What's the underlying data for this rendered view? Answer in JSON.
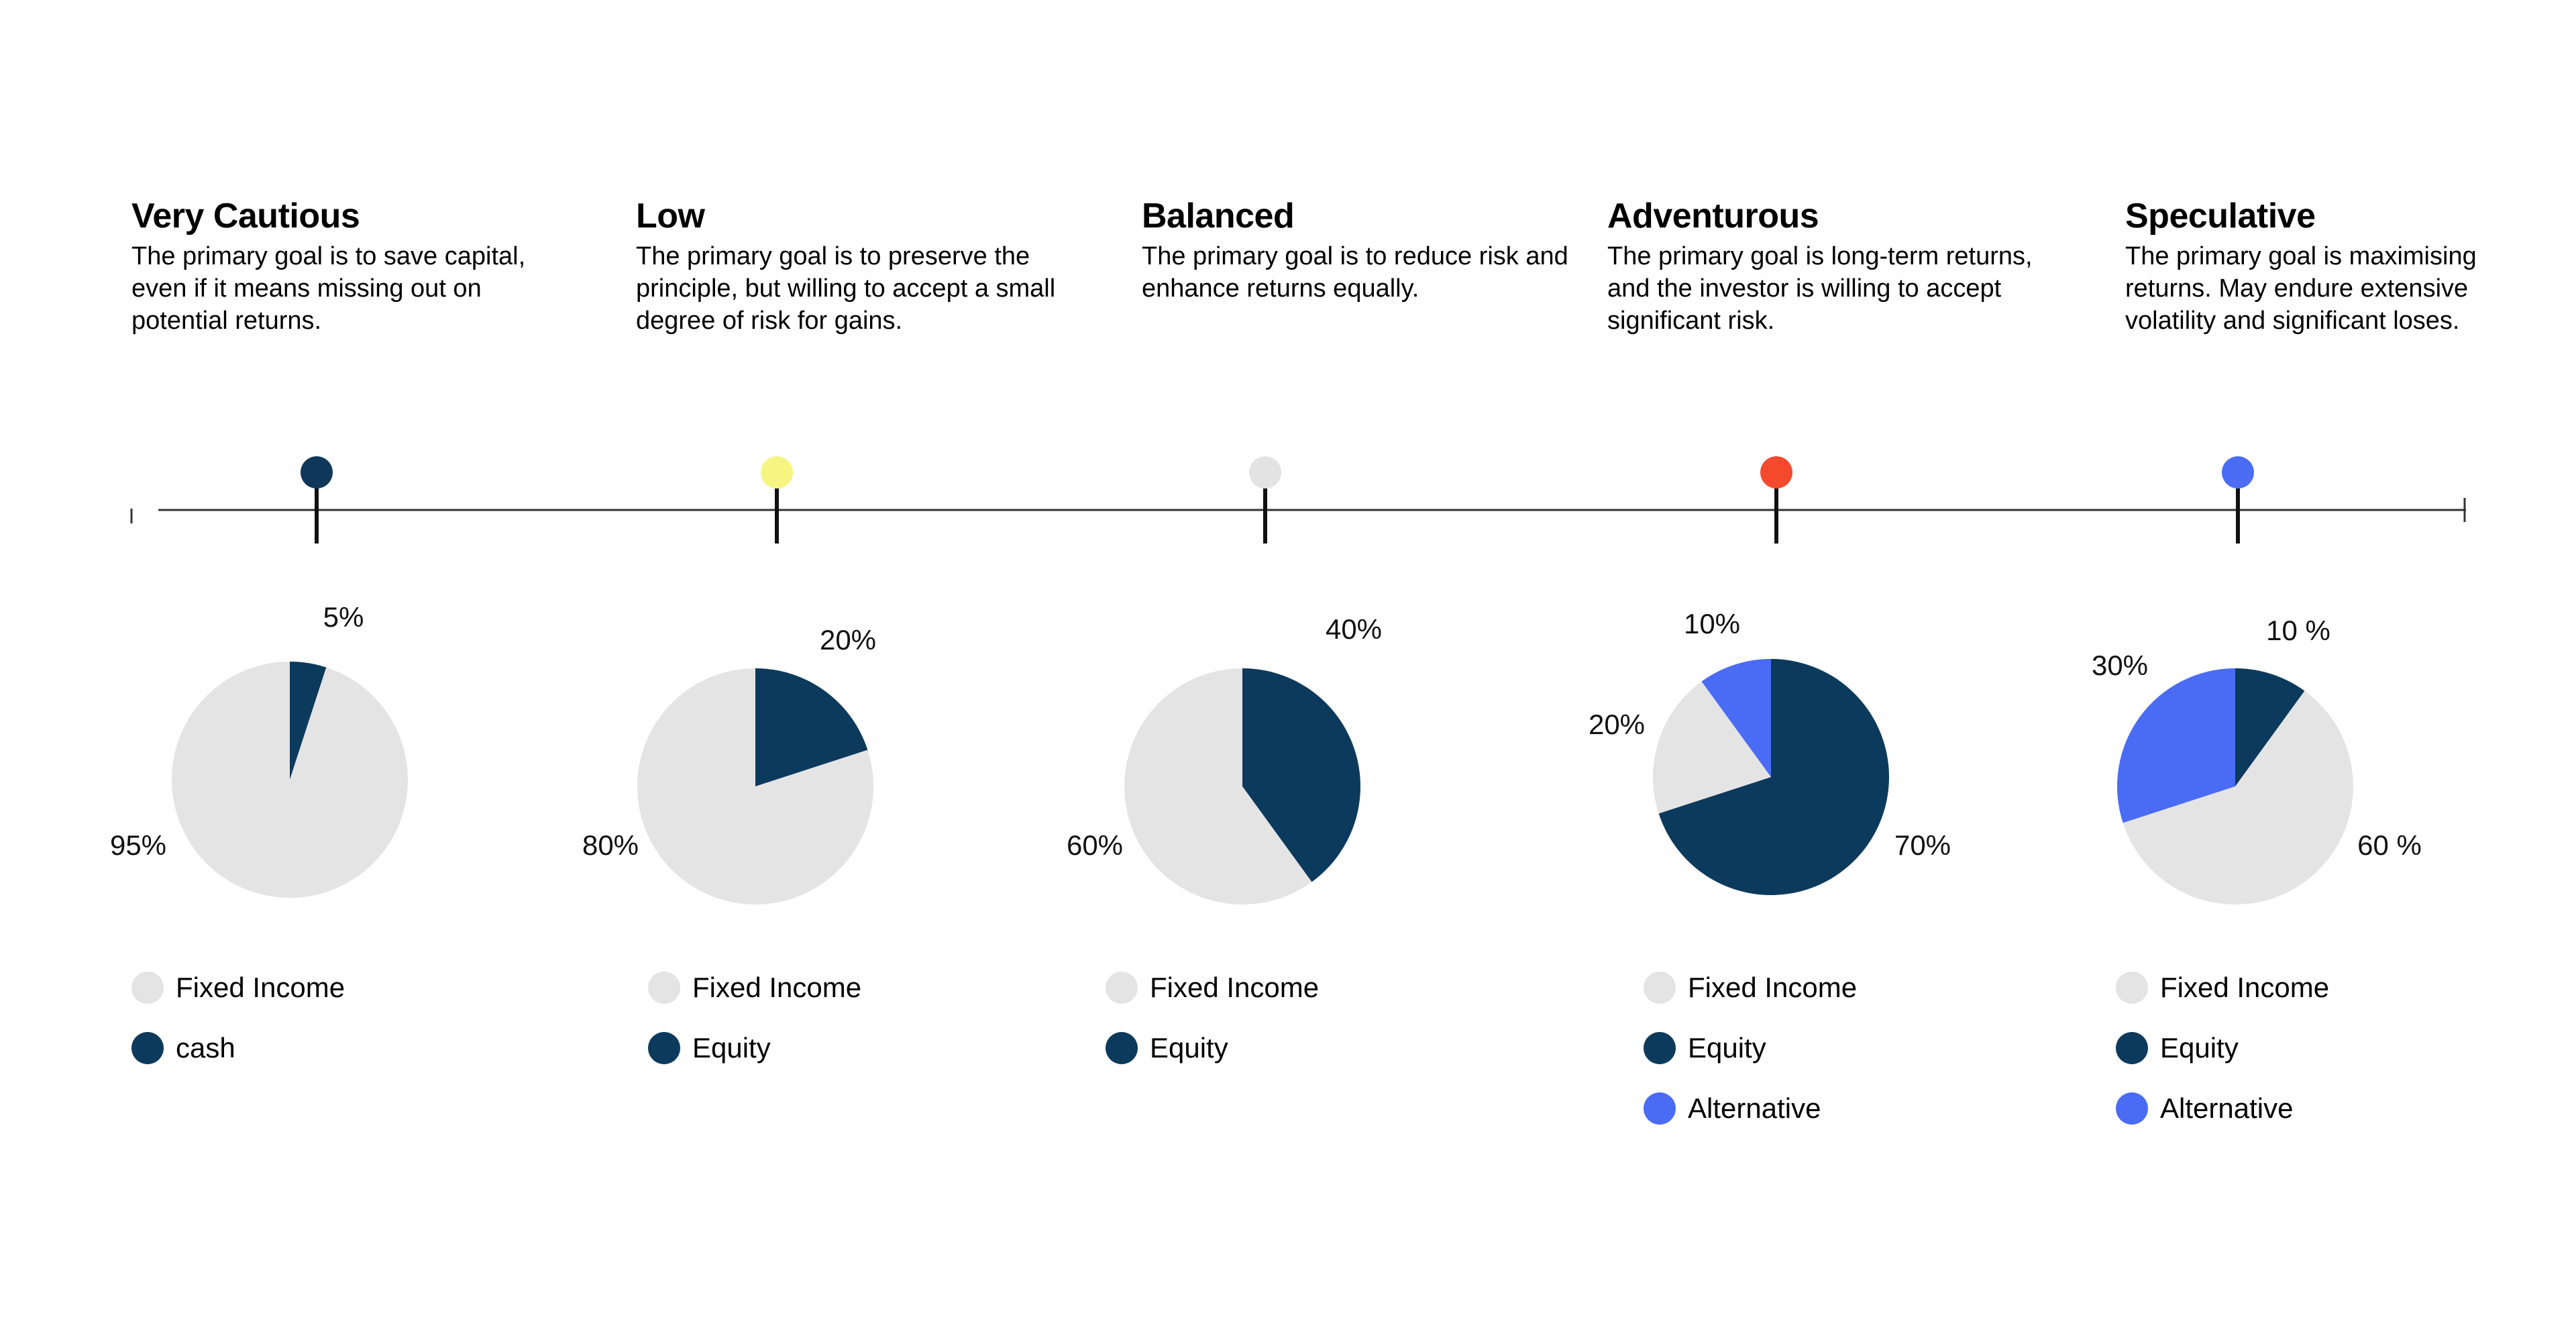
{
  "profiles": [
    {
      "title": "Very Cautious",
      "description": "The primary goal is to save capital, even if it means missing out on potential returns.",
      "marker_color": "#0f3759"
    },
    {
      "title": "Low",
      "description": "The primary goal is to preserve the principle, but willing to accept a small degree of risk for gains.",
      "marker_color": "#f6f582"
    },
    {
      "title": "Balanced",
      "description": "The primary goal is to reduce risk and enhance returns equally.",
      "marker_color": "#e4e3e4"
    },
    {
      "title": "Adventurous",
      "description": "The primary goal is long-term returns, and the investor is willing to accept significant risk.",
      "marker_color": "#f5492e"
    },
    {
      "title": "Speculative",
      "description": "The primary goal is maximising returns. May endure extensive volatility and significant loses.",
      "marker_color": "#4b6df6"
    }
  ],
  "colors": {
    "fixed_income": "#e5e4e5",
    "equity": "#0c3a5c",
    "alternative": "#4a6cf4",
    "axis": "#333333"
  },
  "chart_data": [
    {
      "type": "pie",
      "profile": "Very Cautious",
      "slices": [
        {
          "name": "cash",
          "value": 5,
          "label": "5%",
          "color": "#0c3a5c"
        },
        {
          "name": "Fixed Income",
          "value": 95,
          "label": "95%",
          "color": "#e5e4e5"
        }
      ],
      "legend": [
        "Fixed Income",
        "cash"
      ]
    },
    {
      "type": "pie",
      "profile": "Low",
      "slices": [
        {
          "name": "Equity",
          "value": 20,
          "label": "20%",
          "color": "#0c3a5c"
        },
        {
          "name": "Fixed Income",
          "value": 80,
          "label": "80%",
          "color": "#e5e4e5"
        }
      ],
      "legend": [
        "Fixed Income",
        "Equity"
      ]
    },
    {
      "type": "pie",
      "profile": "Balanced",
      "slices": [
        {
          "name": "Equity",
          "value": 40,
          "label": "40%",
          "color": "#0c3a5c"
        },
        {
          "name": "Fixed Income",
          "value": 60,
          "label": "60%",
          "color": "#e5e4e5"
        }
      ],
      "legend": [
        "Fixed Income",
        "Equity"
      ]
    },
    {
      "type": "pie",
      "profile": "Adventurous",
      "slices": [
        {
          "name": "Equity",
          "value": 70,
          "label": "70%",
          "color": "#0c3a5c"
        },
        {
          "name": "Fixed Income",
          "value": 20,
          "label": "20%",
          "color": "#e5e4e5"
        },
        {
          "name": "Alternative",
          "value": 10,
          "label": "10%",
          "color": "#4a6cf4"
        }
      ],
      "legend": [
        "Fixed Income",
        "Equity",
        "Alternative"
      ]
    },
    {
      "type": "pie",
      "profile": "Speculative",
      "slices": [
        {
          "name": "Equity",
          "value": 10,
          "label": "10 %",
          "color": "#0c3a5c"
        },
        {
          "name": "Fixed Income",
          "value": 60,
          "label": "60 %",
          "color": "#e5e4e5"
        },
        {
          "name": "Alternative",
          "value": 30,
          "label": "30%",
          "color": "#4a6cf4"
        }
      ],
      "legend": [
        "Fixed Income",
        "Equity",
        "Alternative"
      ]
    }
  ]
}
